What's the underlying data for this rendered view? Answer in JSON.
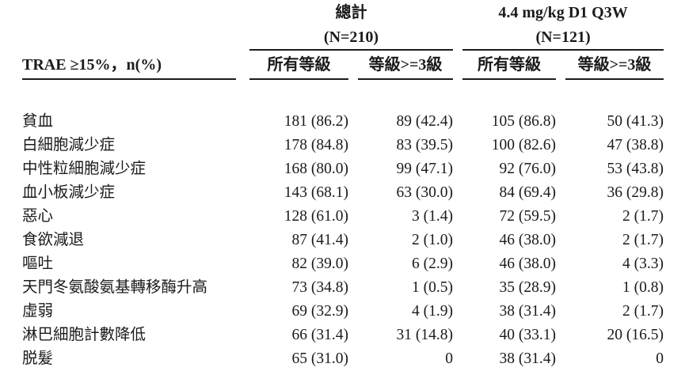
{
  "table": {
    "col1_header": "TRAE ≥15%，n(%)",
    "groups": [
      {
        "title": "總計",
        "n": "(N=210)"
      },
      {
        "title": "4.4 mg/kg D1 Q3W",
        "n": "(N=121)"
      }
    ],
    "subheaders": [
      "所有等級",
      "等級>=3級",
      "所有等級",
      "等級>=3級"
    ],
    "rows": [
      {
        "label": "貧血",
        "values": [
          "181 (86.2)",
          "89 (42.4)",
          "105 (86.8)",
          "50 (41.3)"
        ]
      },
      {
        "label": "白細胞減少症",
        "values": [
          "178 (84.8)",
          "83 (39.5)",
          "100 (82.6)",
          "47 (38.8)"
        ]
      },
      {
        "label": "中性粒細胞減少症",
        "values": [
          "168 (80.0)",
          "99 (47.1)",
          "92 (76.0)",
          "53 (43.8)"
        ]
      },
      {
        "label": "血小板減少症",
        "values": [
          "143 (68.1)",
          "63 (30.0)",
          "84 (69.4)",
          "36 (29.8)"
        ]
      },
      {
        "label": "惡心",
        "values": [
          "128 (61.0)",
          "3 (1.4)",
          "72 (59.5)",
          "2 (1.7)"
        ]
      },
      {
        "label": "食欲減退",
        "values": [
          "87 (41.4)",
          "2 (1.0)",
          "46 (38.0)",
          "2 (1.7)"
        ]
      },
      {
        "label": "嘔吐",
        "values": [
          "82 (39.0)",
          "6 (2.9)",
          "46 (38.0)",
          "4 (3.3)"
        ]
      },
      {
        "label": "天門冬氨酸氨基轉移酶升高",
        "values": [
          "73 (34.8)",
          "1 (0.5)",
          "35 (28.9)",
          "1 (0.8)"
        ]
      },
      {
        "label": "虛弱",
        "values": [
          "69 (32.9)",
          "4 (1.9)",
          "38 (31.4)",
          "2 (1.7)"
        ]
      },
      {
        "label": "淋巴細胞計數降低",
        "values": [
          "66 (31.4)",
          "31 (14.8)",
          "40 (33.1)",
          "20 (16.5)"
        ]
      },
      {
        "label": "脱髮",
        "values": [
          "65 (31.0)",
          "0",
          "38 (31.4)",
          "0"
        ]
      }
    ],
    "colors": {
      "text": "#1b1b1b",
      "rule": "#1c1c1c",
      "background": "#ffffff"
    }
  }
}
